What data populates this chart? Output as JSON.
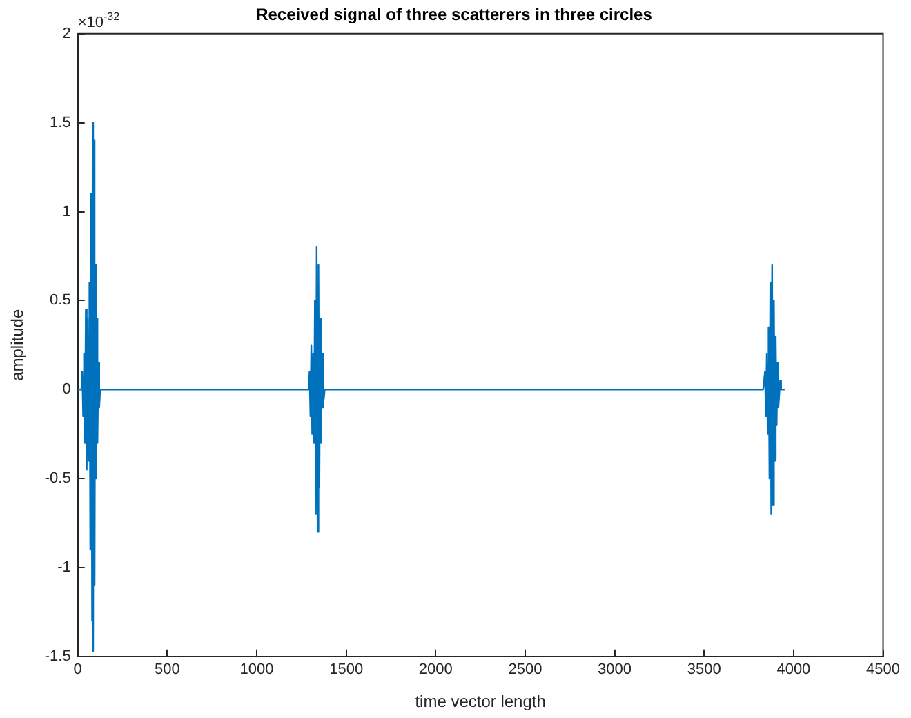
{
  "chart_data": {
    "type": "line",
    "title": "Received signal of three scatterers in three circles",
    "xlabel": "time vector length",
    "ylabel": "amplitude",
    "annotations": [
      "×10$^{-32}$"
    ],
    "xlim": [
      0,
      4500
    ],
    "xticks": [
      0,
      500,
      1000,
      1500,
      2000,
      2500,
      3000,
      3500,
      4000,
      4500
    ],
    "ylim": [
      -1.5,
      2
    ],
    "yticks": [
      -1.5,
      -1,
      -0.5,
      0,
      0.5,
      1,
      1.5,
      2
    ],
    "grid": false,
    "legend": false,
    "marker": "none",
    "line_style": "solid",
    "series": [
      {
        "color": "#0072bd",
        "x": [
          0,
          20,
          25,
          30,
          35,
          40,
          45,
          50,
          55,
          60,
          65,
          70,
          75,
          80,
          83,
          86,
          90,
          94,
          98,
          102,
          106,
          110,
          115,
          120,
          125,
          1290,
          1295,
          1300,
          1305,
          1310,
          1315,
          1320,
          1325,
          1330,
          1335,
          1340,
          1345,
          1350,
          1355,
          1360,
          1365,
          1370,
          1380,
          3830,
          3840,
          3845,
          3850,
          3855,
          3860,
          3865,
          3870,
          3875,
          3880,
          3885,
          3890,
          3895,
          3900,
          3905,
          3910,
          3915,
          3925,
          3930,
          3950
        ],
        "values": [
          0,
          0,
          0.1,
          -0.15,
          0.2,
          -0.3,
          0.45,
          -0.45,
          0.4,
          -0.4,
          0.6,
          -0.9,
          1.1,
          -1.3,
          1.5,
          -1.47,
          1.4,
          -1.1,
          0.7,
          -0.5,
          0.4,
          -0.3,
          0.15,
          -0.1,
          0,
          0,
          0.1,
          -0.15,
          0.25,
          -0.25,
          0.2,
          -0.3,
          0.5,
          -0.7,
          0.8,
          -0.8,
          0.7,
          -0.55,
          0.4,
          -0.3,
          0.2,
          -0.1,
          0,
          0,
          0.1,
          -0.15,
          0.2,
          -0.25,
          0.35,
          -0.5,
          0.6,
          -0.7,
          0.7,
          -0.65,
          0.5,
          -0.4,
          0.3,
          -0.2,
          0.15,
          -0.1,
          0.05,
          0,
          0
        ]
      }
    ]
  }
}
